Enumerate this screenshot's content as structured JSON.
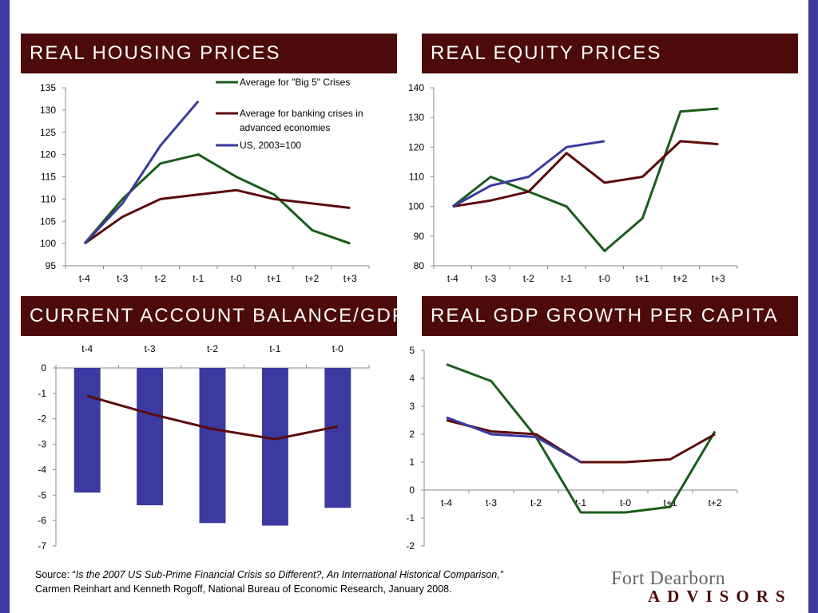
{
  "panels": {
    "housing": {
      "title": "REAL HOUSING PRICES"
    },
    "equity": {
      "title": "REAL EQUITY PRICES"
    },
    "current_account": {
      "title": "CURRENT ACCOUNT BALANCE/GDP"
    },
    "gdp": {
      "title": "REAL GDP GROWTH PER CAPITA"
    }
  },
  "source": {
    "prefix": "Source: “",
    "title": "Is the 2007 US Sub-Prime Financial Crisis so Different?, An International Historical Comparison,”",
    "authors": "Carmen Reinhart and Kenneth Rogoff, National Bureau of Economic Research, January 2008."
  },
  "logo": {
    "line1": "Fort Dearborn",
    "line2": "ADVISORS"
  },
  "colors": {
    "big5": "#1a5c1a",
    "banking": "#5c0a0a",
    "us": "#3a3aa0",
    "header_bg": "#4d0a0a",
    "frame": "#3a3aa0"
  },
  "chart_data": [
    {
      "id": "housing",
      "type": "line",
      "title": "REAL HOUSING PRICES",
      "categories": [
        "t-4",
        "t-3",
        "t-2",
        "t-1",
        "t-0",
        "t+1",
        "t+2",
        "t+3"
      ],
      "ylim": [
        95,
        135
      ],
      "yticks": [
        95,
        100,
        105,
        110,
        115,
        120,
        125,
        130,
        135
      ],
      "legend_position": "top-right",
      "series": [
        {
          "name": "Average for \"Big 5\" Crises",
          "color": "#1a5c1a",
          "values": [
            100,
            110,
            118,
            120,
            115,
            111,
            103,
            100
          ]
        },
        {
          "name": "Average for banking crises in advanced economies",
          "color": "#5c0a0a",
          "values": [
            100,
            106,
            110,
            111,
            112,
            110,
            109,
            108
          ]
        },
        {
          "name": "US, 2003=100",
          "color": "#3a3aa0",
          "values": [
            100,
            109,
            122,
            132,
            null,
            null,
            null,
            null
          ]
        }
      ]
    },
    {
      "id": "equity",
      "type": "line",
      "title": "REAL EQUITY PRICES",
      "categories": [
        "t-4",
        "t-3",
        "t-2",
        "t-1",
        "t-0",
        "t+1",
        "t+2",
        "t+3"
      ],
      "ylim": [
        80,
        140
      ],
      "yticks": [
        80,
        90,
        100,
        110,
        120,
        130,
        140
      ],
      "series": [
        {
          "color": "#1a5c1a",
          "values": [
            100,
            110,
            105,
            100,
            85,
            96,
            132,
            133
          ]
        },
        {
          "color": "#5c0a0a",
          "values": [
            100,
            102,
            105,
            118,
            108,
            110,
            122,
            121
          ]
        },
        {
          "color": "#3a3aa0",
          "values": [
            100,
            107,
            110,
            120,
            122,
            null,
            null,
            null
          ]
        }
      ]
    },
    {
      "id": "current_account",
      "type": "bar",
      "title": "CURRENT ACCOUNT BALANCE/GDP",
      "categories": [
        "t-4",
        "t-3",
        "t-2",
        "t-1",
        "t-0"
      ],
      "ylim": [
        -7,
        0
      ],
      "yticks": [
        0,
        -1,
        -2,
        -3,
        -4,
        -5,
        -6,
        -7
      ],
      "series": [
        {
          "kind": "bar",
          "color": "#3a3aa0",
          "values": [
            -4.9,
            -5.4,
            -6.1,
            -6.2,
            -5.5
          ]
        },
        {
          "kind": "line",
          "color": "#5c0a0a",
          "values": [
            -1.1,
            -1.8,
            -2.4,
            -2.8,
            -2.3
          ]
        }
      ]
    },
    {
      "id": "gdp",
      "type": "line",
      "title": "REAL GDP GROWTH PER CAPITA",
      "categories": [
        "t-4",
        "t-3",
        "t-2",
        "t-1",
        "t-0",
        "t+1",
        "t+2"
      ],
      "ylim": [
        -2,
        5
      ],
      "yticks": [
        -2,
        -1,
        0,
        1,
        2,
        3,
        4,
        5
      ],
      "series": [
        {
          "color": "#1a5c1a",
          "values": [
            4.5,
            3.9,
            1.9,
            -0.8,
            -0.8,
            -0.6,
            2.1
          ]
        },
        {
          "color": "#5c0a0a",
          "values": [
            2.5,
            2.1,
            2.0,
            1.0,
            1.0,
            1.1,
            2.0
          ]
        },
        {
          "color": "#3a3aa0",
          "values": [
            2.6,
            2.0,
            1.9,
            1.0,
            null,
            null,
            null
          ]
        }
      ]
    }
  ]
}
